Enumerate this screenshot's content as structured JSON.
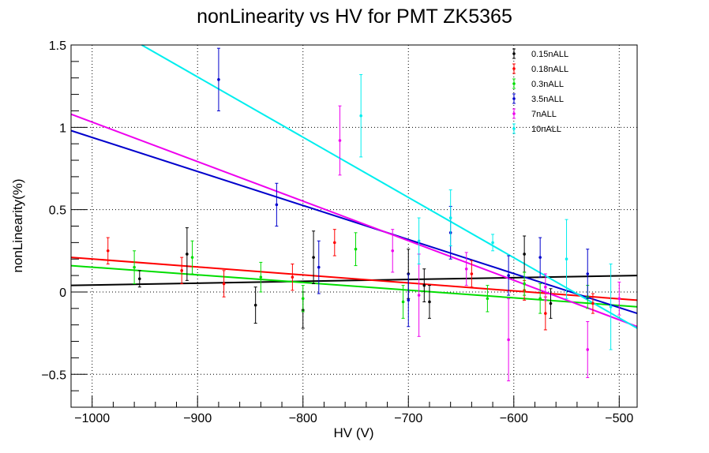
{
  "chart_data": {
    "type": "scatter",
    "title": "nonLinearity vs HV for PMT ZK5365",
    "xlabel": "HV (V)",
    "ylabel": "nonLinearity(%)",
    "xlim": [
      -1020,
      -483
    ],
    "ylim": [
      -0.7,
      1.5
    ],
    "x_ticks": [
      -1000,
      -900,
      -800,
      -700,
      -600,
      -500
    ],
    "x_tick_labels": [
      "−1000",
      "−900",
      "−800",
      "−700",
      "−600",
      "−500"
    ],
    "y_ticks": [
      -0.5,
      0,
      0.5,
      1,
      1.5
    ],
    "y_tick_labels": [
      "−0.5",
      "0",
      "0.5",
      "1",
      "1.5"
    ],
    "grid": true,
    "legend_position": "top-right",
    "series": [
      {
        "name": "0.15nALL",
        "color": "#000000",
        "points": [
          {
            "x": -955,
            "y": 0.08,
            "err": 0.05
          },
          {
            "x": -910,
            "y": 0.23,
            "err": 0.16
          },
          {
            "x": -845,
            "y": -0.08,
            "err": 0.11
          },
          {
            "x": -800,
            "y": -0.11,
            "err": 0.11
          },
          {
            "x": -790,
            "y": 0.21,
            "err": 0.16
          },
          {
            "x": -700,
            "y": 0.11,
            "err": 0.15
          },
          {
            "x": -685,
            "y": 0.04,
            "err": 0.1
          },
          {
            "x": -680,
            "y": -0.06,
            "err": 0.1
          },
          {
            "x": -590,
            "y": 0.23,
            "err": 0.11
          },
          {
            "x": -565,
            "y": -0.07,
            "err": 0.09
          }
        ],
        "fit": {
          "x": [
            -1020,
            -483
          ],
          "y": [
            0.04,
            0.1
          ]
        }
      },
      {
        "name": "0.18nALL",
        "color": "#ff0000",
        "points": [
          {
            "x": -985,
            "y": 0.25,
            "err": 0.08
          },
          {
            "x": -915,
            "y": 0.13,
            "err": 0.08
          },
          {
            "x": -875,
            "y": 0.05,
            "err": 0.08
          },
          {
            "x": -810,
            "y": 0.09,
            "err": 0.08
          },
          {
            "x": -770,
            "y": 0.3,
            "err": 0.08
          },
          {
            "x": -640,
            "y": 0.11,
            "err": 0.08
          },
          {
            "x": -590,
            "y": 0.01,
            "err": 0.06
          },
          {
            "x": -570,
            "y": -0.13,
            "err": 0.1
          },
          {
            "x": -525,
            "y": -0.07,
            "err": 0.06
          }
        ],
        "fit": {
          "x": [
            -1020,
            -483
          ],
          "y": [
            0.21,
            -0.05
          ]
        }
      },
      {
        "name": "0.3nALL",
        "color": "#00dd00",
        "points": [
          {
            "x": -960,
            "y": 0.15,
            "err": 0.1
          },
          {
            "x": -905,
            "y": 0.21,
            "err": 0.1
          },
          {
            "x": -840,
            "y": 0.09,
            "err": 0.09
          },
          {
            "x": -800,
            "y": -0.04,
            "err": 0.08
          },
          {
            "x": -750,
            "y": 0.26,
            "err": 0.1
          },
          {
            "x": -705,
            "y": -0.06,
            "err": 0.1
          },
          {
            "x": -625,
            "y": -0.04,
            "err": 0.08
          },
          {
            "x": -590,
            "y": 0.05,
            "err": 0.07
          },
          {
            "x": -575,
            "y": -0.04,
            "err": 0.09
          },
          {
            "x": -530,
            "y": -0.03,
            "err": 0.07
          }
        ],
        "fit": {
          "x": [
            -1020,
            -483
          ],
          "y": [
            0.16,
            -0.09
          ]
        }
      },
      {
        "name": "3.5nALL",
        "color": "#0000cc",
        "points": [
          {
            "x": -880,
            "y": 1.29,
            "err": 0.19
          },
          {
            "x": -825,
            "y": 0.53,
            "err": 0.13
          },
          {
            "x": -785,
            "y": 0.15,
            "err": 0.16
          },
          {
            "x": -700,
            "y": -0.05,
            "err": 0.16
          },
          {
            "x": -660,
            "y": 0.36,
            "err": 0.16
          },
          {
            "x": -605,
            "y": 0.1,
            "err": 0.12
          },
          {
            "x": -575,
            "y": 0.21,
            "err": 0.12
          },
          {
            "x": -530,
            "y": 0.11,
            "err": 0.15
          }
        ],
        "fit": {
          "x": [
            -1020,
            -483
          ],
          "y": [
            0.98,
            -0.13
          ]
        }
      },
      {
        "name": "7nALL",
        "color": "#ee00ee",
        "points": [
          {
            "x": -765,
            "y": 0.92,
            "err": 0.21
          },
          {
            "x": -715,
            "y": 0.25,
            "err": 0.13
          },
          {
            "x": -690,
            "y": -0.02,
            "err": 0.25
          },
          {
            "x": -645,
            "y": 0.14,
            "err": 0.1
          },
          {
            "x": -605,
            "y": -0.29,
            "err": 0.25
          },
          {
            "x": -570,
            "y": 0.03,
            "err": 0.08
          },
          {
            "x": -530,
            "y": -0.35,
            "err": 0.17
          },
          {
            "x": -500,
            "y": -0.04,
            "err": 0.1
          }
        ],
        "fit": {
          "x": [
            -1020,
            -483
          ],
          "y": [
            1.08,
            -0.21
          ]
        }
      },
      {
        "name": "10nALL",
        "color": "#00eeee",
        "points": [
          {
            "x": -745,
            "y": 1.07,
            "err": 0.25
          },
          {
            "x": -690,
            "y": 0.31,
            "err": 0.14
          },
          {
            "x": -660,
            "y": 0.45,
            "err": 0.17
          },
          {
            "x": -620,
            "y": 0.3,
            "err": 0.05
          },
          {
            "x": -550,
            "y": 0.2,
            "err": 0.24
          },
          {
            "x": -508,
            "y": -0.09,
            "err": 0.26
          }
        ],
        "fit": {
          "x": [
            -953,
            -483
          ],
          "y": [
            1.5,
            -0.22
          ]
        }
      }
    ]
  }
}
